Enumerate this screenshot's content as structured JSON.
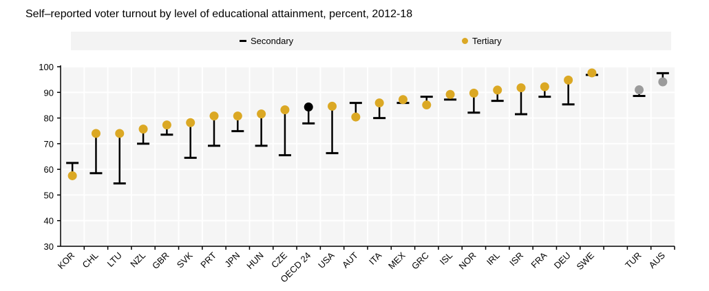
{
  "chart_data": {
    "type": "dot-range",
    "title": "Self–reported voter turnout by level of educational attainment, percent, 2012-18",
    "xlabel": "",
    "ylabel": "",
    "ylim": [
      30,
      100
    ],
    "yticks": [
      30,
      40,
      50,
      60,
      70,
      80,
      90,
      100
    ],
    "grid": true,
    "legend_placement": "top",
    "colors": {
      "secondary": "#000000",
      "tertiary": "#dba824",
      "oecd": "#000000",
      "non_highlight": "#9b9b9b",
      "plot_bg": "#f5f5f5"
    },
    "categories": [
      "KOR",
      "CHL",
      "LTU",
      "NZL",
      "GBR",
      "SVK",
      "PRT",
      "JPN",
      "HUN",
      "CZE",
      "OECD 24",
      "USA",
      "AUT",
      "ITA",
      "MEX",
      "GRC",
      "ISL",
      "NOR",
      "IRL",
      "ISR",
      "FRA",
      "DEU",
      "SWE",
      "TUR",
      "AUS"
    ],
    "series": [
      {
        "name": "Secondary",
        "marker": "dash",
        "values": [
          62.5,
          58.5,
          54.5,
          70,
          73.5,
          64.5,
          69.2,
          74.9,
          69.2,
          65.5,
          77.9,
          66.3,
          85.9,
          80,
          85.9,
          88.3,
          87.2,
          82.1,
          86.7,
          81.5,
          88.3,
          85.3,
          96.8,
          88.6,
          97.5
        ]
      },
      {
        "name": "Tertiary",
        "marker": "dot",
        "values": [
          57.5,
          74,
          74,
          75.7,
          77.3,
          78.2,
          80.8,
          80.8,
          81.6,
          83.2,
          84.3,
          84.6,
          80.4,
          85.9,
          87.2,
          85.1,
          89.2,
          89.7,
          90.9,
          91.8,
          92.2,
          94.8,
          97.6,
          91,
          94.1
        ]
      }
    ]
  }
}
